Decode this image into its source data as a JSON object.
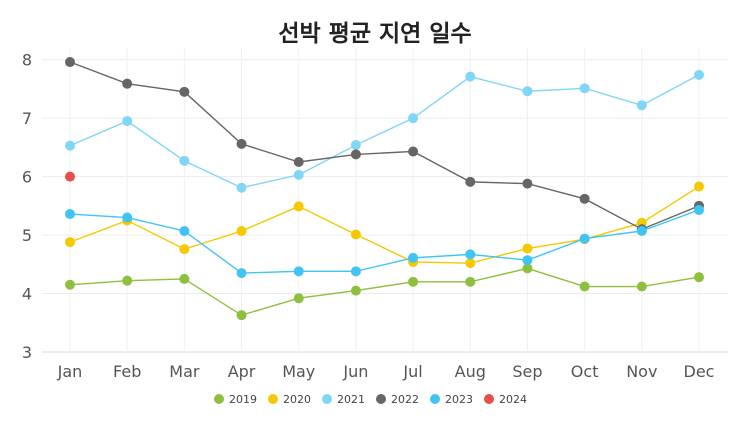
{
  "chart_data": {
    "type": "line",
    "title": "선박 평균 지연 일수",
    "xlabel": "",
    "ylabel": "",
    "categories": [
      "Jan",
      "Feb",
      "Mar",
      "Apr",
      "May",
      "Jun",
      "Jul",
      "Aug",
      "Sep",
      "Oct",
      "Nov",
      "Dec"
    ],
    "ylim": [
      3,
      8.2
    ],
    "yticks": [
      3,
      4,
      5,
      6,
      7,
      8
    ],
    "grid": true,
    "legend_position": "bottom",
    "series": [
      {
        "name": "2019",
        "color": "#8fbf3f",
        "values": [
          4.15,
          4.22,
          4.25,
          3.63,
          3.92,
          4.05,
          4.2,
          4.2,
          4.43,
          4.12,
          4.12,
          4.28
        ]
      },
      {
        "name": "2020",
        "color": "#f5c800",
        "values": [
          4.88,
          5.25,
          4.76,
          5.07,
          5.49,
          5.01,
          4.54,
          4.52,
          4.77,
          4.93,
          5.21,
          5.83
        ]
      },
      {
        "name": "2021",
        "color": "#7fd6f7",
        "values": [
          6.53,
          6.95,
          6.27,
          5.81,
          6.03,
          6.54,
          7.0,
          7.71,
          7.46,
          7.51,
          7.22,
          7.74
        ]
      },
      {
        "name": "2022",
        "color": "#666666",
        "values": [
          7.96,
          7.59,
          7.45,
          6.56,
          6.25,
          6.38,
          6.43,
          5.91,
          5.88,
          5.62,
          5.1,
          5.5
        ]
      },
      {
        "name": "2023",
        "color": "#40c4f4",
        "values": [
          5.36,
          5.3,
          5.07,
          4.35,
          4.38,
          4.38,
          4.61,
          4.67,
          4.57,
          4.94,
          5.07,
          5.43
        ]
      },
      {
        "name": "2024",
        "color": "#e84c4c",
        "values": [
          6.0,
          null,
          null,
          null,
          null,
          null,
          null,
          null,
          null,
          null,
          null,
          null
        ]
      }
    ]
  }
}
